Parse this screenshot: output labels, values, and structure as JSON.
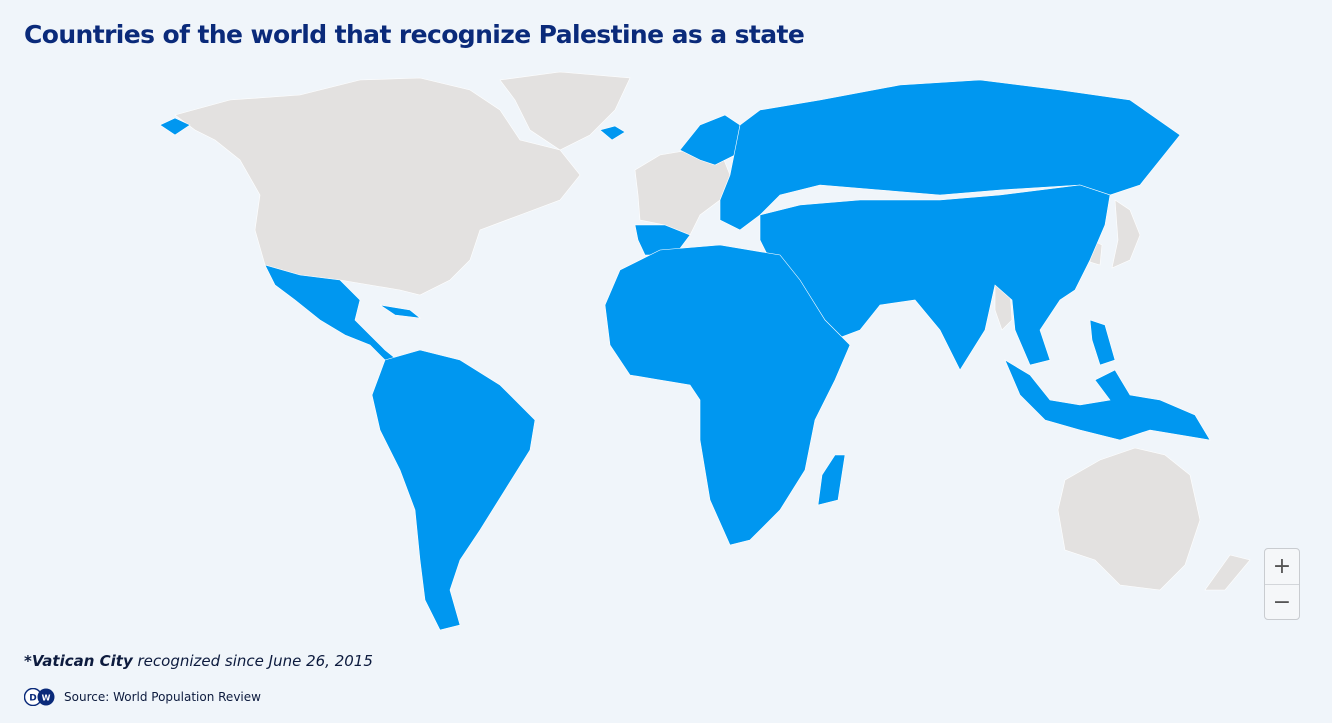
{
  "title": "Countries of the world that recognize Palestine as a state",
  "colors": {
    "recognizes": "#0097f0",
    "not_recognizing": "#e3e1e0",
    "background": "#f0f5fa",
    "title": "#0a2a7a"
  },
  "map_controls": {
    "zoom_in": "+",
    "zoom_out": "−"
  },
  "footnote": {
    "bold": "*Vatican City",
    "rest": " recognized since June 26, 2015"
  },
  "source": {
    "logo": "DW",
    "text": "Source: World Population Review"
  }
}
